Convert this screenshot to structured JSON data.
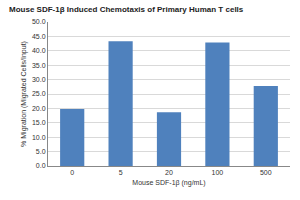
{
  "chart_data": {
    "type": "bar",
    "title": "Mouse SDF-1β Induced Chemotaxis of Primary Human T cells",
    "x_label": "Mouse SDF-1β (ng/mL)",
    "y_label": "% Migration (Migrated Cells/Input)",
    "categories": [
      "0",
      "5",
      "20",
      "100",
      "500"
    ],
    "values": [
      19.8,
      43.3,
      18.7,
      42.9,
      27.8
    ],
    "color": "#4f81bd",
    "ylim": [
      0,
      50
    ],
    "yticks": [
      {
        "value": 0,
        "label": "0.0"
      },
      {
        "value": 5,
        "label": "5.0"
      },
      {
        "value": 10,
        "label": "10.0"
      },
      {
        "value": 15,
        "label": "15.0"
      },
      {
        "value": 20,
        "label": "20.0"
      },
      {
        "value": 25,
        "label": "25.0"
      },
      {
        "value": 30,
        "label": "30.0"
      },
      {
        "value": 35,
        "label": "35.0"
      },
      {
        "value": 40,
        "label": "40.0"
      },
      {
        "value": 45,
        "label": "45.0"
      },
      {
        "value": 50,
        "label": "50.0"
      }
    ],
    "grid": true
  }
}
